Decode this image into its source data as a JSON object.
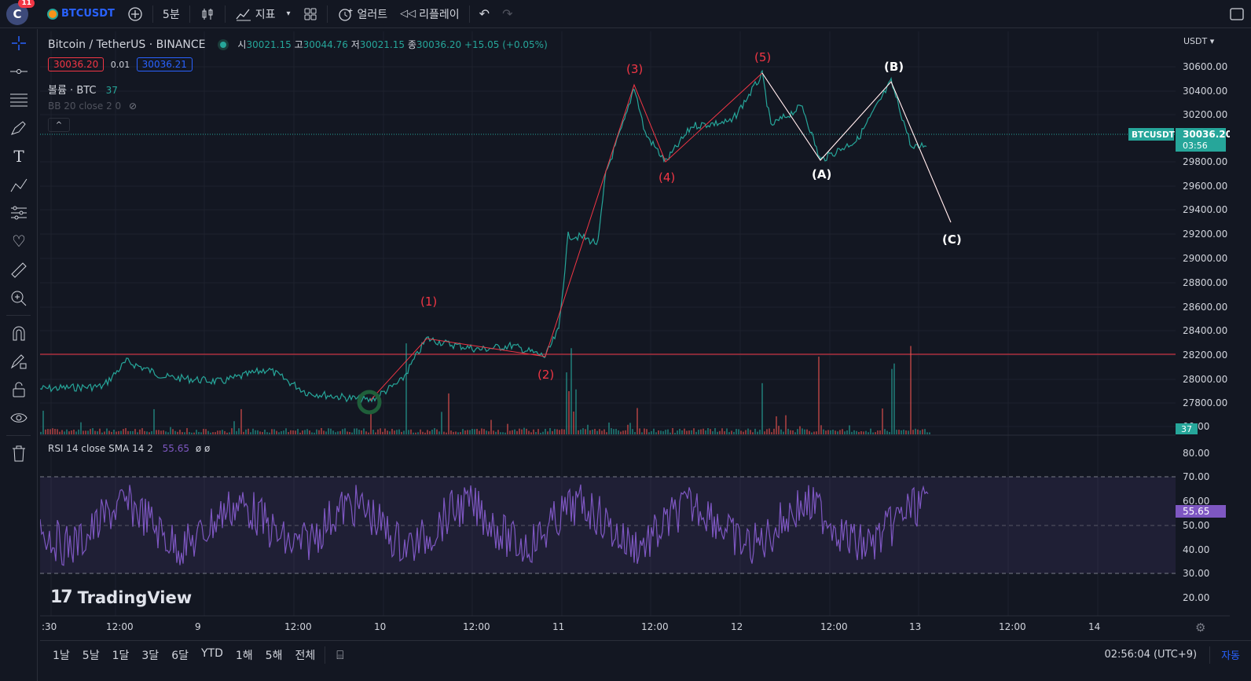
{
  "header": {
    "avatar_letter": "C",
    "notification_count": "11",
    "symbol": "BTCUSDT",
    "interval": "5분",
    "indicators_label": "지표",
    "alert_label": "얼러트",
    "replay_label": "리플레이"
  },
  "legend": {
    "title": "Bitcoin / TetherUS · BINANCE",
    "open_label": "시",
    "open": "30021.15",
    "high_label": "고",
    "high": "30044.76",
    "low_label": "저",
    "low": "30021.15",
    "close_label": "종",
    "close": "30036.20",
    "change": "+15.05 (+0.05%)",
    "bid": "30036.20",
    "spread": "0.01",
    "ask": "30036.21",
    "volume_label": "볼륨 · BTC",
    "volume_value": "37",
    "bb_label": "BB 20 close 2 0",
    "rsi_label": "RSI 14 close SMA 14 2",
    "rsi_value": "55.65",
    "rsi_extra": "ø ø"
  },
  "price_axis": {
    "currency": "USDT",
    "ticks": [
      "30600.00",
      "30400.00",
      "30200.00",
      "29800.00",
      "29600.00",
      "29400.00",
      "29200.00",
      "29000.00",
      "28800.00",
      "28600.00",
      "28400.00",
      "28200.00",
      "28000.00",
      "27800.00",
      "00.00"
    ],
    "last_symbol": "BTCUSDT",
    "last_price": "30036.20",
    "countdown": "03:56",
    "volume_badge": "37"
  },
  "rsi_axis": {
    "ticks": [
      "80.00",
      "70.00",
      "60.00",
      "50.00",
      "40.00",
      "30.00",
      "20.00"
    ],
    "badge": "55.65"
  },
  "time_axis": [
    ":30",
    "12:00",
    "9",
    "12:00",
    "10",
    "12:00",
    "11",
    "12:00",
    "12",
    "12:00",
    "13",
    "12:00",
    "14"
  ],
  "wave_labels": {
    "w1": "(1)",
    "w2": "(2)",
    "w3": "(3)",
    "w4": "(4)",
    "w5": "(5)",
    "wa": "(A)",
    "wb": "(B)",
    "wc": "(C)"
  },
  "watermark": "TradingView",
  "bottom": {
    "ranges": [
      "1날",
      "5날",
      "1달",
      "3달",
      "6달",
      "YTD",
      "1해",
      "5해",
      "전체"
    ],
    "clock": "02:56:04 (UTC+9)",
    "auto": "자동"
  },
  "colors": {
    "bull": "#26a69a",
    "bear": "#ef5350",
    "wave": "#f23645",
    "rsi": "#7e57c2",
    "accent": "#2962ff"
  }
}
